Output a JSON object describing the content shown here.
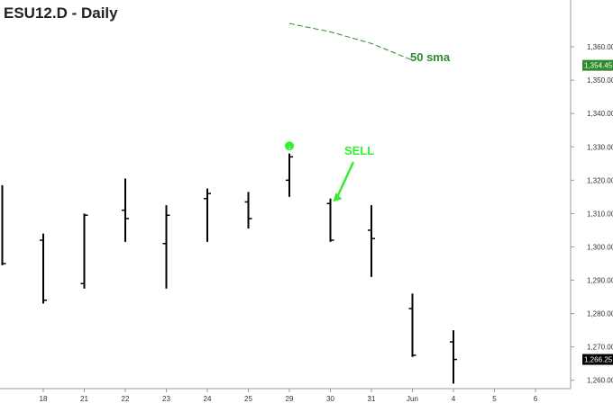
{
  "chart_data": {
    "type": "ohlc",
    "title": "ESU12.D - Daily",
    "colors": {
      "bars": "#000000",
      "sma": "#2e8b2e",
      "sma_label": "#2e8b2e",
      "sell": "#33ee33",
      "last_price_bg": "#2e8b2e",
      "current_price_bg": "#000000",
      "axis": "#888888",
      "text": "#333333"
    },
    "x_tick_labels": [
      "18",
      "21",
      "22",
      "23",
      "24",
      "25",
      "29",
      "30",
      "31",
      "Jun",
      "4",
      "5",
      "6"
    ],
    "y_ticks": [
      1260,
      1270,
      1280,
      1290,
      1300,
      1310,
      1320,
      1330,
      1340,
      1350,
      1360
    ],
    "y_tick_labels": [
      "1,260.00",
      "1,270.00",
      "1,280.00",
      "1,290.00",
      "1,300.00",
      "1,310.00",
      "1,320.00",
      "1,330.00",
      "1,340.00",
      "1,350.00",
      "1,360.00"
    ],
    "ylim": [
      1257.5,
      1370
    ],
    "series": [
      {
        "bars": [
          {
            "x": "17",
            "open": null,
            "high": 1318.5,
            "low": 1294.5,
            "close": 1295.0
          },
          {
            "x": "18",
            "open": 1302.0,
            "high": 1304.0,
            "low": 1283.0,
            "close": 1284.0
          },
          {
            "x": "21",
            "open": 1289.0,
            "high": 1310.0,
            "low": 1287.5,
            "close": 1309.5
          },
          {
            "x": "22",
            "open": 1311.0,
            "high": 1320.5,
            "low": 1301.5,
            "close": 1308.5
          },
          {
            "x": "23",
            "open": 1301.0,
            "high": 1312.5,
            "low": 1287.5,
            "close": 1309.5
          },
          {
            "x": "24",
            "open": 1314.5,
            "high": 1317.5,
            "low": 1301.5,
            "close": 1316.0
          },
          {
            "x": "25",
            "open": 1313.5,
            "high": 1316.5,
            "low": 1305.5,
            "close": 1308.5
          },
          {
            "x": "29",
            "open": 1320.0,
            "high": 1328.0,
            "low": 1315.0,
            "close": 1327.0
          },
          {
            "x": "30",
            "open": 1313.0,
            "high": 1314.5,
            "low": 1301.5,
            "close": 1302.0
          },
          {
            "x": "31",
            "open": 1305.0,
            "high": 1312.5,
            "low": 1291.0,
            "close": 1302.5
          },
          {
            "x": "Jun",
            "open": 1281.5,
            "high": 1286.0,
            "low": 1267.0,
            "close": 1267.5
          },
          {
            "x": "4",
            "open": 1271.5,
            "high": 1275.0,
            "low": 1259.0,
            "close": 1266.25
          }
        ]
      },
      {
        "name": "50 sma",
        "type": "line",
        "points": [
          {
            "x": "29",
            "y": 1367.0
          },
          {
            "x": "30",
            "y": 1364.5
          },
          {
            "x": "31",
            "y": 1361.0
          },
          {
            "x": "Jun",
            "y": 1356.0
          }
        ]
      }
    ],
    "price_labels": [
      {
        "value": 1354.45,
        "text": "1,354.45"
      },
      {
        "value": 1266.25,
        "text": "1,266.25"
      }
    ],
    "annotations": [
      {
        "text": "50 sma"
      },
      {
        "text": "SELL",
        "target_x": "30",
        "target_y": 1313.0
      },
      {
        "text": "↓",
        "x": "29",
        "y": 1330.0
      }
    ]
  }
}
